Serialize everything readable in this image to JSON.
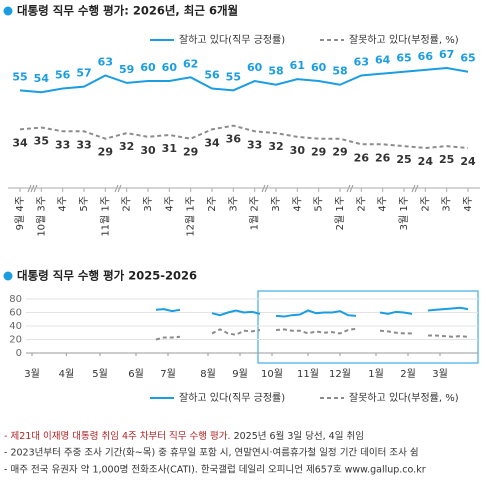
{
  "chart_data": [
    {
      "type": "line",
      "title": "대통령 직무 수행 평가: 2026년, 최근 6개월",
      "legend": "top-right",
      "categories": [
        "9월 4주",
        "10월 3주",
        "4주",
        "5주",
        "11월 1주",
        "2주",
        "3주",
        "4주",
        "12월 1주",
        "2주",
        "3주",
        "1월 2주",
        "3주",
        "4주",
        "5주",
        "2월 1주",
        "2주",
        "4주",
        "3월 1주",
        "2주",
        "3주",
        "4주"
      ],
      "series": [
        {
          "name": "잘하고 있다(직무 긍정률)",
          "color": "#1b9de2",
          "values": [
            55,
            54,
            56,
            57,
            63,
            59,
            60,
            60,
            62,
            56,
            55,
            60,
            58,
            61,
            60,
            58,
            63,
            64,
            65,
            66,
            67,
            65
          ]
        },
        {
          "name": "잘못하고 있다(부정률, %)",
          "color": "#8c8c8c",
          "values": [
            34,
            35,
            33,
            33,
            29,
            32,
            30,
            31,
            29,
            34,
            36,
            33,
            32,
            30,
            29,
            29,
            26,
            26,
            25,
            24,
            25,
            24
          ]
        }
      ]
    },
    {
      "type": "line",
      "title": "대통령 직무 수행 평가 2025-2026",
      "legend": "bottom",
      "grid": true,
      "x": [
        17,
        18,
        19,
        20,
        21,
        22,
        23,
        24,
        25,
        26,
        27,
        28,
        29,
        30,
        31,
        32,
        33,
        34,
        35,
        36,
        37,
        38,
        39,
        40,
        41,
        42,
        43,
        44,
        45,
        46,
        47,
        48,
        49,
        50,
        51,
        52,
        53,
        54,
        55,
        56
      ],
      "xlim": [
        0,
        57
      ],
      "xticks": [
        {
          "value": 1.5,
          "label": "3월"
        },
        {
          "value": 5.8,
          "label": "4월"
        },
        {
          "value": 10,
          "label": "5월"
        },
        {
          "value": 14.5,
          "label": "6월"
        },
        {
          "value": 18.5,
          "label": "7월"
        },
        {
          "value": 23.5,
          "label": "8월"
        },
        {
          "value": 27.5,
          "label": "9월"
        },
        {
          "value": 31.5,
          "label": "10월"
        },
        {
          "value": 36,
          "label": "11월"
        },
        {
          "value": 40,
          "label": "12월"
        },
        {
          "value": 44.5,
          "label": "1월"
        },
        {
          "value": 48.5,
          "label": "2월"
        },
        {
          "value": 52.5,
          "label": "3월"
        }
      ],
      "ylim": [
        0,
        80
      ],
      "yticks": [
        0,
        20,
        40,
        60,
        80
      ],
      "series": [
        {
          "name": "잘하고 있다(직무 긍정률)",
          "color": "#1b9de2",
          "values": [
            64,
            65,
            62,
            64,
            null,
            null,
            null,
            59,
            56,
            60,
            63,
            60,
            61,
            58,
            null,
            55,
            54,
            56,
            57,
            63,
            59,
            60,
            60,
            62,
            56,
            55,
            null,
            null,
            60,
            58,
            61,
            60,
            58,
            null,
            63,
            64,
            65,
            66,
            67,
            65
          ]
        },
        {
          "name": "잘못하고 있다(부정률, %)",
          "color": "#8c8c8c",
          "values": [
            20,
            23,
            23,
            24,
            null,
            null,
            null,
            29,
            35,
            29,
            27,
            33,
            32,
            34,
            null,
            34,
            35,
            33,
            33,
            29,
            32,
            30,
            31,
            29,
            34,
            36,
            null,
            null,
            33,
            32,
            30,
            29,
            29,
            null,
            26,
            26,
            25,
            24,
            25,
            24
          ]
        }
      ]
    }
  ],
  "footnotes": {
    "first": {
      "highlight": "- 제21대 이재명 대통령 취임 4주 차부터 직무 수행 평가.",
      "rest": " 2025년 6월 3일 당선, 4일 취임"
    },
    "second": "- 2023년부터 주중 조사 기간(화~목) 중 휴무일 포함 시, 연말연시·여름휴가철 일정 기간 데이터 조사 쉼",
    "third": "- 매주 전국 유권자 약 1,000명 전화조사(CATI). 한국갤럽 데일리 오피니언 제657호 www.gallup.co.kr"
  }
}
